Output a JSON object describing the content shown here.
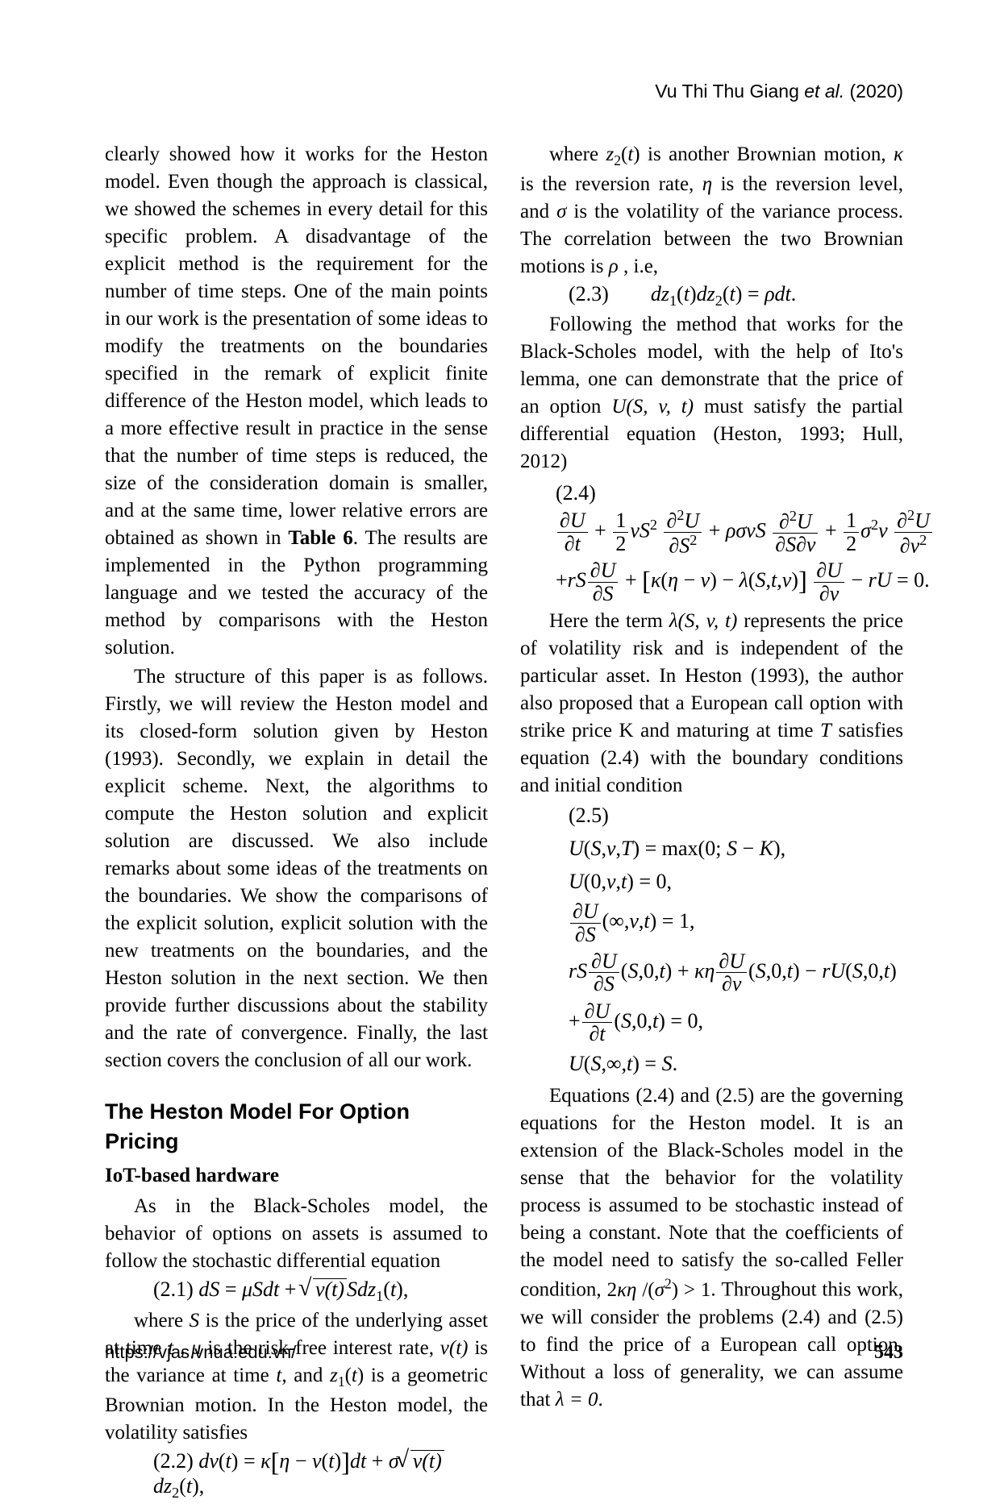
{
  "meta": {
    "running_header_author": "Vu Thi Thu Giang",
    "running_header_etal": "et al.",
    "running_header_year": "(2020)",
    "footer_url": "https://vjas.vnua.edu.vn/",
    "page_number": "543",
    "text_color": "#000000",
    "background_color": "#ffffff",
    "body_font_family": "Times New Roman",
    "heading_font_family": "Arial",
    "body_font_size_pt": 12,
    "heading_font_size_pt": 13
  },
  "left": {
    "p1": "clearly showed how it works for the Heston model. Even though the approach is classical, we showed the schemes in every detail for this specific problem. A disadvantage of the explicit method is the requirement for the number of time steps. One of the main points in our work is the presentation of some ideas to modify the treatments on the boundaries specified in the remark of explicit finite difference of the Heston model, which leads to a more effective result in practice in the sense that the number of time steps is reduced, the size of the consideration domain is smaller, and at the same time, lower relative errors are obtained as shown in ",
    "p1_bold": "Table 6",
    "p1_tail": ". The results are implemented in the Python programming language and we tested the accuracy of the method by comparisons with the Heston solution.",
    "p2": "The structure of this paper is as follows. Firstly, we will review the Heston model and its closed-form solution given by Heston (1993). Secondly, we explain in detail the explicit scheme. Next, the algorithms to compute the Heston solution and explicit solution are discussed. We also include remarks about some ideas of the treatments on the boundaries. We show the comparisons of the explicit solution, explicit solution with the new treatments on the boundaries, and the Heston solution in the next section. We then provide further discussions about the stability and the rate of convergence. Finally,  the last section covers the conclusion of all our work.",
    "h2": "The Heston Model For Option Pricing",
    "h3": "IoT-based hardware",
    "p3": "As in the Black-Scholes model, the behavior of options on assets is assumed to follow the stochastic differential equation",
    "eq21_label": "(2.1)",
    "p4a": "where ",
    "p4b": " is the price of the underlying asset at time ",
    "p4c": " is the risk-free interest rate, ",
    "p4d": " is the variance at time ",
    "p4e": ", and ",
    "p4f": " is a geometric Brownian motion. In the Heston model, the volatility satisfies",
    "eq22_label": "(2.2)"
  },
  "right": {
    "p1a": "where ",
    "p1b": " is another Brownian motion, ",
    "p1c": " is the reversion rate, ",
    "p1d": " is the reversion level, and ",
    "p1e": " is the volatility of the variance process. The correlation between the two Brownian motions is ",
    "p1f": " , i.e,",
    "eq23_label": "(2.3)",
    "p2a": "Following the method that works for the Black-Scholes model, with the help of Ito's lemma, one can demonstrate that the price of an option ",
    "p2b": " must satisfy the partial differential equation (Heston, 1993; Hull, 2012)",
    "eq24_label": "(2.4)",
    "p3a": "Here the term ",
    "p3b": " represents the price of volatility risk and is independent of the particular asset. In Heston (1993), the author also proposed that a European call option with strike price K and maturing at time ",
    "p3c": " satisfies equation (2.4) with the boundary conditions and initial condition",
    "eq25_label": "(2.5)",
    "p4a": "Equations (2.4) and (2.5) are the governing equations for the Heston model. It is an extension of the Black-Scholes model in the sense that the behavior for the volatility process is assumed to be stochastic instead of being a constant. Note that the coefficients of the model need to satisfy the so-called Feller condition, ",
    "p4b": ". Throughout this work, we will consider the problems (2.4) and (2.5) to find the price of a European call option. Without a loss of generality, we can assume that ",
    "p4c": "."
  },
  "math": {
    "S": "S",
    "t": "t",
    "mu": "μ",
    "v_of_t": "v(t)",
    "z1_of_t": "z₁(t)",
    "z2_of_t": "z₂(t)",
    "kappa": "κ",
    "eta": "η",
    "sigma": "σ",
    "rho": "ρ",
    "U_Svt": "U(S, v, t)",
    "T": "T",
    "lambda_Svt": "λ(S, v, t)",
    "feller": "2κη / (σ²) > 1",
    "lambda_zero": "λ = 0",
    "partial": "∂"
  }
}
